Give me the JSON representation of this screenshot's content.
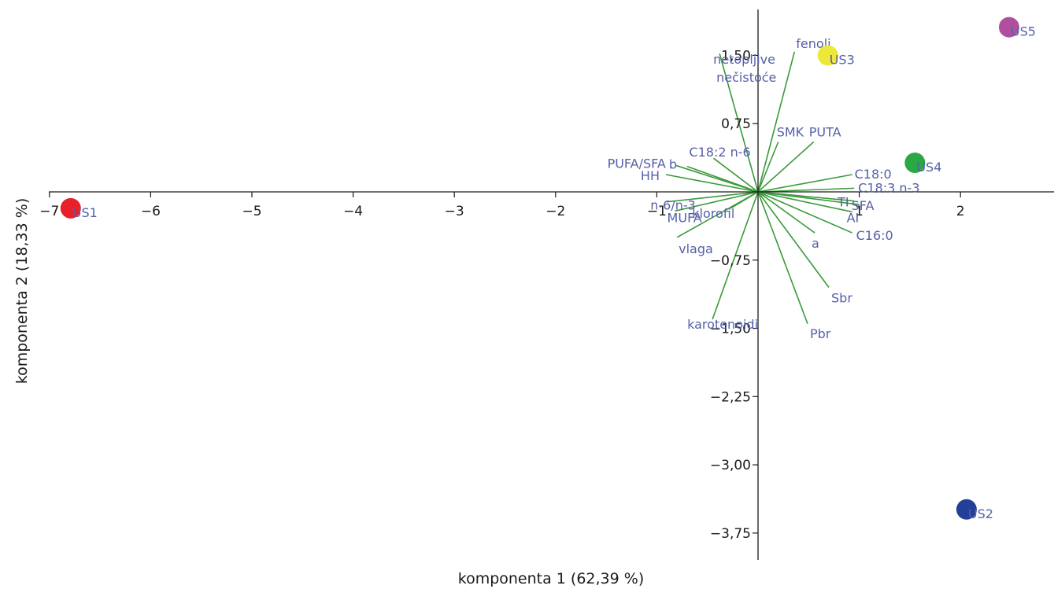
{
  "chart_data": {
    "type": "scatter",
    "title": "",
    "xlabel": "komponenta 1 (62,39 %)",
    "ylabel": "komponenta 2 (18,33 %)",
    "xlim": [
      -7.0,
      2.85
    ],
    "ylim": [
      -4.15,
      1.98
    ],
    "x_ticks": [
      -7,
      -6,
      -5,
      -4,
      -3,
      -2,
      -1,
      1,
      2
    ],
    "x_tick_labels": [
      "−7",
      "−6",
      "−5",
      "−4",
      "−3",
      "−2",
      "−1",
      "1",
      "2"
    ],
    "y_ticks": [
      1.5,
      0.75,
      -0.75,
      -1.5,
      -2.25,
      -3.0,
      -3.75
    ],
    "y_tick_labels": [
      "1,50",
      "0,75",
      "−0,75",
      "−1,50",
      "−2,25",
      "−3,00",
      "−3,75"
    ],
    "grid": false,
    "samples": [
      {
        "label": "US1",
        "x": -6.79,
        "y": -0.18,
        "color": "#e8202a"
      },
      {
        "label": "US2",
        "x": 2.06,
        "y": -3.49,
        "color": "#233f97"
      },
      {
        "label": "US3",
        "x": 0.69,
        "y": 1.5,
        "color": "#ede73a"
      },
      {
        "label": "US4",
        "x": 1.55,
        "y": 0.32,
        "color": "#2aa844"
      },
      {
        "label": "US5",
        "x": 2.48,
        "y": 1.81,
        "color": "#b04fa0"
      }
    ],
    "loadings": [
      {
        "label": "fenoli",
        "x": 0.36,
        "y": 1.54
      },
      {
        "label": "netopljive",
        "x": -0.38,
        "y": 1.52
      },
      {
        "label": "nečistoće",
        "x": null,
        "y": null
      },
      {
        "label": "SMK",
        "x": 0.2,
        "y": 0.55
      },
      {
        "label": "PUTA",
        "x": 0.55,
        "y": 0.55
      },
      {
        "label": "C18:2 n-6",
        "x": -0.44,
        "y": 0.37
      },
      {
        "label": "b",
        "x": -0.7,
        "y": 0.28
      },
      {
        "label": "PUFA/SFA",
        "x": -0.81,
        "y": 0.29
      },
      {
        "label": "HH",
        "x": -0.91,
        "y": 0.19
      },
      {
        "label": "C18:0",
        "x": 0.93,
        "y": 0.19
      },
      {
        "label": "C18:3 n-3",
        "x": 0.95,
        "y": 0.04
      },
      {
        "label": "TI",
        "x": 0.95,
        "y": -0.1
      },
      {
        "label": "SFA",
        "x": 1.0,
        "y": -0.14
      },
      {
        "label": "AI",
        "x": 0.93,
        "y": -0.22
      },
      {
        "label": "C16:0",
        "x": 0.93,
        "y": -0.45
      },
      {
        "label": "a",
        "x": 0.56,
        "y": -0.45
      },
      {
        "label": "Sbr",
        "x": 0.7,
        "y": -1.05
      },
      {
        "label": "Pbr",
        "x": 0.49,
        "y": -1.45
      },
      {
        "label": "n-6/n-3",
        "x": -0.9,
        "y": -0.11
      },
      {
        "label": "MUFA",
        "x": -0.82,
        "y": -0.21
      },
      {
        "label": "klorofil",
        "x": -0.27,
        "y": -0.18
      },
      {
        "label": "vlaga",
        "x": -0.8,
        "y": -0.5
      },
      {
        "label": "karotenoidi",
        "x": -0.45,
        "y": -1.4
      }
    ],
    "loading_color": "#3a9a3a",
    "label_color": "#5560a8"
  }
}
